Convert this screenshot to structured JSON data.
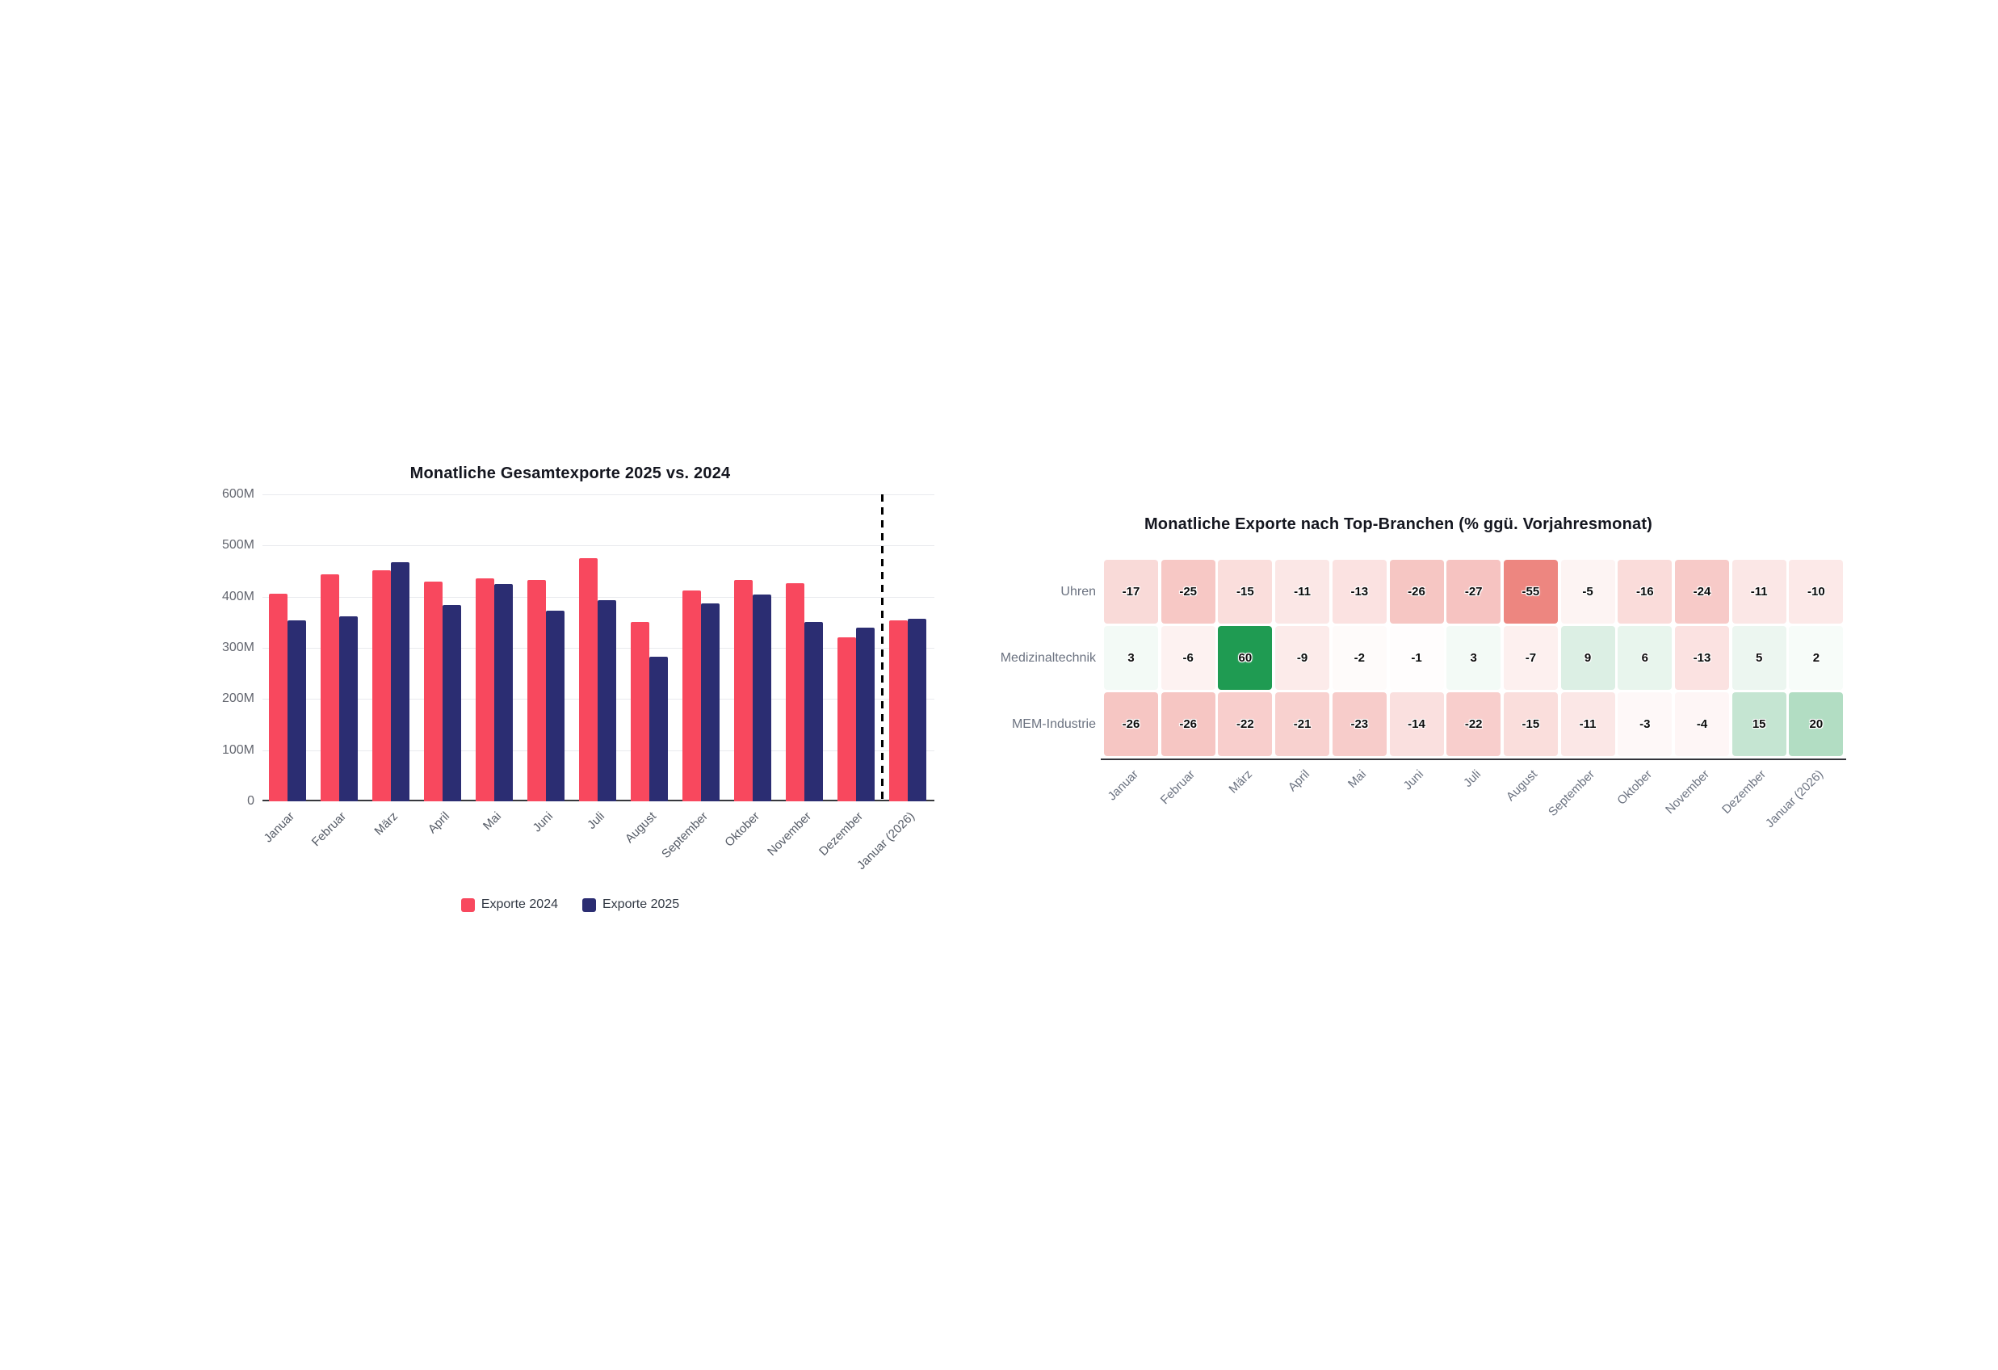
{
  "chart_data": [
    {
      "type": "bar",
      "title": "Monatliche Gesamtexporte 2025 vs. 2024",
      "categories": [
        "Januar",
        "Februar",
        "März",
        "April",
        "Mai",
        "Juni",
        "Juli",
        "August",
        "September",
        "Oktober",
        "November",
        "Dezember",
        "Januar (2026)"
      ],
      "series": [
        {
          "name": "Exporte 2024",
          "color": "#f8485e",
          "values": [
            406,
            443,
            452,
            429,
            435,
            432,
            476,
            350,
            412,
            432,
            426,
            321,
            354
          ]
        },
        {
          "name": "Exporte 2025",
          "color": "#2b2d72",
          "values": [
            353,
            361,
            467,
            384,
            424,
            372,
            393,
            282,
            387,
            404,
            351,
            340,
            357
          ]
        }
      ],
      "unit": "M",
      "ylim": [
        0,
        600
      ],
      "ytick_labels": [
        "600M",
        "500M",
        "400M",
        "300M",
        "200M",
        "100M",
        "0"
      ],
      "ytick_values": [
        600,
        500,
        400,
        300,
        200,
        100,
        0
      ],
      "grid": "horizontal",
      "legend_position": "bottom-center",
      "divider": {
        "before_category": "Januar (2026)",
        "style": "dashed",
        "color": "#000000"
      }
    },
    {
      "type": "heatmap",
      "title": "Monatliche Exporte nach Top-Branchen (% ggü. Vorjahresmonat)",
      "rows": [
        "Uhren",
        "Medizinaltechnik",
        "MEM-Industrie"
      ],
      "columns": [
        "Januar",
        "Februar",
        "März",
        "April",
        "Mai",
        "Juni",
        "Juli",
        "August",
        "September",
        "Oktober",
        "November",
        "Dezember",
        "Januar (2026)"
      ],
      "values": [
        [
          -17,
          -25,
          -15,
          -11,
          -13,
          -26,
          -27,
          -55,
          -5,
          -16,
          -24,
          -11,
          -10
        ],
        [
          3,
          -6,
          60,
          -9,
          -2,
          -1,
          3,
          -7,
          9,
          6,
          -13,
          5,
          2
        ],
        [
          -26,
          -26,
          -22,
          -21,
          -23,
          -14,
          -22,
          -15,
          -11,
          -3,
          -4,
          15,
          20
        ]
      ],
      "unit": "%",
      "colorscale": {
        "negative_base": "#e5534b",
        "positive_base": "#1f9b52",
        "neutral": "#ffffff",
        "negative_full_at": -78,
        "positive_full_at": 58
      }
    }
  ]
}
